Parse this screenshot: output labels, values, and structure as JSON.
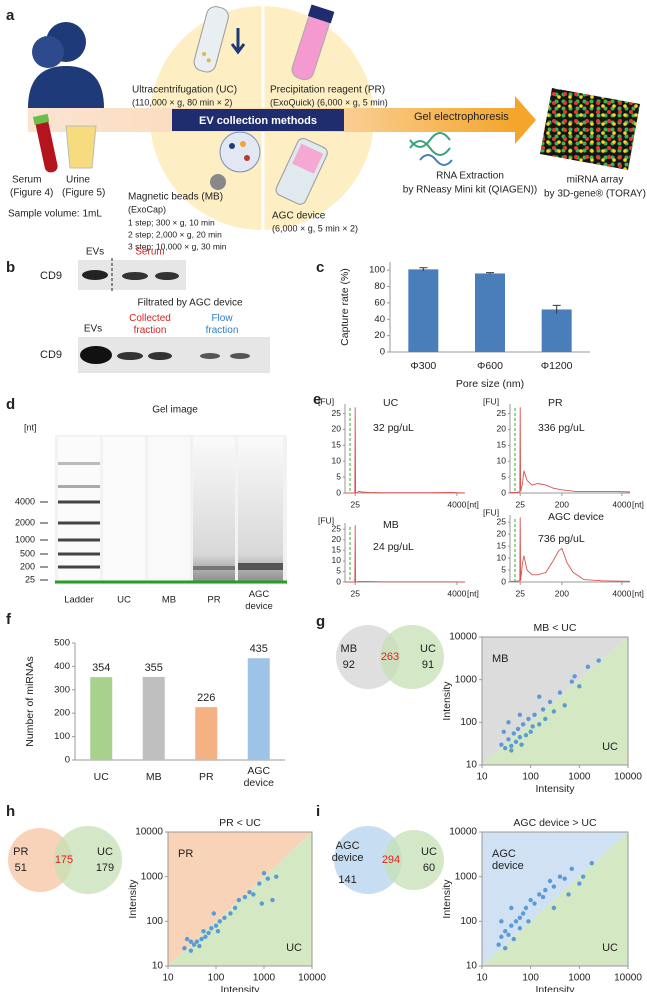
{
  "panel_a": {
    "label": "a",
    "method_box": "EV collection methods",
    "serum": "Serum",
    "serum_ref": "(Figure 4)",
    "urine": "Urine",
    "urine_ref": "(Figure 5)",
    "sample_volume": "Sample volume: 1mL",
    "uc_name": "Ultracentrifugation (UC)",
    "uc_condition": "(110,000 × g, 80 min × 2)",
    "pr_name": "Precipitation reagent (PR)",
    "pr_condition": "(ExoQuick) (6,000 × g, 5 min)",
    "mb_name": "Magnetic beads (MB)",
    "mb_kit": "(ExoCap)",
    "mb_steps": [
      "1 step; 300 × g, 10 min",
      "2 step; 2,000 × g, 20 min",
      "3 step; 10,000 × g, 30 min"
    ],
    "agc_name": "AGC device",
    "agc_condition": "(6,000 × g, 5 min × 2)",
    "gel": "Gel electrophoresis",
    "rna": "RNA Extraction",
    "rna_kit": "by RNeasy Mini kit (QIAGEN))",
    "array": "miRNA array",
    "array_kit": "by 3D-gene® (TORAY)"
  },
  "panel_b": {
    "label": "b",
    "protein": "CD9",
    "top_lanes": [
      "EVs",
      "Serum"
    ],
    "filter_note": "Filtrated by AGC device",
    "bottom_lanes": [
      "EVs",
      "Collected fraction",
      "Flow fraction"
    ]
  },
  "panel_c": {
    "label": "c",
    "type": "bar",
    "categories": [
      "Φ300",
      "Φ600",
      "Φ1200"
    ],
    "values": [
      101,
      96,
      52
    ],
    "errors": [
      2,
      1,
      5
    ],
    "color": "#4a7ebb",
    "ylim": [
      0,
      110
    ],
    "yticks": [
      0,
      20,
      40,
      60,
      80,
      100
    ],
    "ylabel": "Capture rate (%)",
    "xlabel": "Pore size (nm)"
  },
  "panel_d": {
    "label": "d",
    "title": "Gel image",
    "unit": "[nt]",
    "ladder": [
      "4000",
      "2000",
      "1000",
      "500",
      "200",
      "25"
    ],
    "lanes": [
      "Ladder",
      "UC",
      "MB",
      "PR",
      "AGC device"
    ]
  },
  "panel_e": {
    "label": "e",
    "type": "line",
    "y_unit": "[FU]",
    "x_unit": "[nt]",
    "ylim": [
      0,
      28
    ],
    "yticks": [
      0,
      5,
      10,
      15,
      20,
      25
    ],
    "xscale": "log",
    "xlim": [
      15,
      6000
    ],
    "color": "#d9534f",
    "plots": [
      {
        "title": "UC",
        "concentration": "32 pg/uL",
        "xticks": [
          25,
          4000
        ],
        "x": [
          15,
          20,
          23,
          24.5,
          25,
          25.5,
          27,
          30,
          35,
          50,
          100,
          300,
          1000,
          3000,
          6000
        ],
        "y": [
          0,
          0,
          0,
          0,
          27,
          0,
          0,
          0.5,
          0.3,
          0.2,
          0.1,
          0.1,
          0.1,
          0.2,
          0
        ]
      },
      {
        "title": "PR",
        "concentration": "336 pg/uL",
        "xticks": [
          25,
          200,
          4000
        ],
        "x": [
          15,
          20,
          24.5,
          25,
          25.5,
          28,
          30,
          35,
          45,
          60,
          90,
          130,
          200,
          400,
          1000,
          3000,
          6000
        ],
        "y": [
          0.2,
          0.2,
          0.3,
          27,
          0.5,
          3,
          7,
          4,
          2.5,
          3,
          2.5,
          1.5,
          1,
          0.5,
          0.5,
          0.5,
          0.3
        ]
      },
      {
        "title": "MB",
        "concentration": "24 pg/uL",
        "xticks": [
          25,
          4000
        ],
        "x": [
          15,
          20,
          23,
          24.5,
          25,
          25.5,
          27,
          30,
          35,
          50,
          100,
          300,
          1000,
          3000,
          6000
        ],
        "y": [
          0,
          0,
          0,
          0,
          27,
          0,
          0,
          0.3,
          0.2,
          0.2,
          0.1,
          0.1,
          0.1,
          0.1,
          0
        ]
      },
      {
        "title": "AGC device",
        "concentration": "736 pg/uL",
        "xticks": [
          25,
          200,
          4000
        ],
        "x": [
          15,
          20,
          24.5,
          25,
          25.5,
          28,
          30,
          35,
          45,
          60,
          90,
          130,
          170,
          200,
          260,
          350,
          600,
          1500,
          6000
        ],
        "y": [
          0.3,
          0.3,
          0.5,
          27,
          0.5,
          8,
          11,
          5,
          3,
          3,
          4,
          9,
          13,
          14,
          8,
          4,
          1,
          0.5,
          0.3
        ]
      }
    ]
  },
  "panel_f": {
    "label": "f",
    "type": "bar",
    "categories": [
      "UC",
      "MB",
      "PR",
      "AGC device"
    ],
    "values": [
      354,
      355,
      226,
      435
    ],
    "colors": [
      "#a9d18e",
      "#bfbfbf",
      "#f4b183",
      "#9dc3e6"
    ],
    "ylim": [
      0,
      500
    ],
    "yticks": [
      0,
      100,
      200,
      300,
      400,
      500
    ],
    "ylabel": "Number of miRNAs"
  },
  "panel_g": {
    "label": "g",
    "venn": {
      "left_label": "MB",
      "left_count": 92,
      "overlap": 263,
      "right_label": "UC",
      "right_count": 91,
      "left_color": "#d9d9d9",
      "right_color": "#c5e0b4"
    },
    "scatter": {
      "type": "scatter",
      "title": "MB < UC",
      "xlabel": "Intensity",
      "ylabel": "Intensity",
      "xscale": "log",
      "yscale": "log",
      "xlim": [
        10,
        10000
      ],
      "ylim": [
        10,
        10000
      ],
      "xticks": [
        10,
        100,
        1000,
        10000
      ],
      "yticks": [
        10,
        100,
        1000,
        10000
      ],
      "upper_label": "MB",
      "lower_label": "UC",
      "upper_color": "#dcdcdc",
      "lower_color": "#d5e8c4",
      "color": "#5b9bd5",
      "x": [
        25,
        30,
        35,
        40,
        45,
        50,
        55,
        60,
        70,
        80,
        90,
        100,
        110,
        120,
        150,
        180,
        200,
        250,
        300,
        400,
        500,
        700,
        1000,
        1500,
        28,
        35,
        60,
        150,
        800,
        2500,
        40,
        65
      ],
      "y": [
        30,
        25,
        40,
        28,
        55,
        35,
        70,
        45,
        90,
        50,
        120,
        60,
        80,
        150,
        90,
        200,
        120,
        300,
        180,
        500,
        250,
        900,
        700,
        2000,
        60,
        100,
        150,
        400,
        1200,
        2800,
        22,
        30
      ]
    }
  },
  "panel_h": {
    "label": "h",
    "venn": {
      "left_label": "PR",
      "left_count": 51,
      "overlap": 175,
      "right_label": "UC",
      "right_count": 179,
      "left_color": "#f8cbad",
      "right_color": "#c5e0b4"
    },
    "scatter": {
      "type": "scatter",
      "title": "PR < UC",
      "xlabel": "Intensity",
      "ylabel": "Intensity",
      "xscale": "log",
      "yscale": "log",
      "xlim": [
        10,
        10000
      ],
      "ylim": [
        10,
        10000
      ],
      "xticks": [
        10,
        100,
        1000,
        10000
      ],
      "yticks": [
        10,
        100,
        1000,
        10000
      ],
      "upper_label": "PR",
      "lower_label": "UC",
      "upper_color": "#f9d3b8",
      "lower_color": "#d5e8c4",
      "color": "#5b9bd5",
      "x": [
        22,
        30,
        35,
        40,
        50,
        60,
        70,
        80,
        100,
        120,
        150,
        200,
        250,
        300,
        400,
        500,
        600,
        800,
        1000,
        1200,
        1500,
        1800,
        25,
        45,
        90,
        30,
        55,
        110,
        900
      ],
      "y": [
        25,
        22,
        30,
        35,
        40,
        45,
        55,
        70,
        80,
        100,
        120,
        150,
        200,
        300,
        350,
        450,
        400,
        700,
        1200,
        900,
        300,
        1000,
        40,
        28,
        150,
        35,
        60,
        60,
        250
      ]
    }
  },
  "panel_i": {
    "label": "i",
    "venn": {
      "left_label": "AGC device",
      "left_count": 141,
      "overlap": 294,
      "right_label": "UC",
      "right_count": 60,
      "left_color": "#bdd7ee",
      "right_color": "#c5e0b4"
    },
    "scatter": {
      "type": "scatter",
      "title": "AGC device > UC",
      "xlabel": "Intensity",
      "ylabel": "Intensity",
      "xscale": "log",
      "yscale": "log",
      "xlim": [
        10,
        10000
      ],
      "ylim": [
        10,
        10000
      ],
      "xticks": [
        10,
        100,
        1000,
        10000
      ],
      "yticks": [
        10,
        100,
        1000,
        10000
      ],
      "upper_label": "AGC device",
      "lower_label": "UC",
      "upper_color": "#cfe1f2",
      "lower_color": "#d5e8c4",
      "color": "#5b9bd5",
      "x": [
        22,
        25,
        30,
        35,
        40,
        50,
        60,
        70,
        80,
        100,
        120,
        150,
        180,
        200,
        250,
        300,
        400,
        500,
        700,
        30,
        45,
        60,
        90,
        1000,
        1200,
        1800,
        25,
        40,
        300,
        600
      ],
      "y": [
        30,
        45,
        60,
        50,
        80,
        100,
        70,
        150,
        200,
        300,
        250,
        400,
        350,
        500,
        800,
        600,
        1000,
        900,
        1500,
        25,
        40,
        120,
        100,
        700,
        1000,
        2000,
        100,
        200,
        200,
        400
      ]
    }
  }
}
